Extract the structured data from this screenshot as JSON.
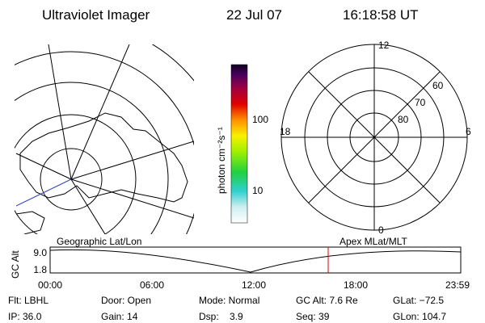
{
  "header": {
    "title": "Ultraviolet Imager",
    "date": "22 Jul 07",
    "time": "16:18:58 UT"
  },
  "colorbar": {
    "label": "photon cm⁻²s⁻¹",
    "ticks": [
      "100",
      "10"
    ]
  },
  "polar_plot": {
    "mlt_labels": [
      "12",
      "18",
      "6",
      "0"
    ],
    "lat_labels": [
      "60",
      "70",
      "80"
    ]
  },
  "timeline": {
    "left_title": "Geographic Lat/Lon",
    "right_title": "Apex MLat/MLT",
    "axis_label": "GC Alt",
    "alt_ticks": [
      "9.0",
      "1.8"
    ],
    "time_ticks": [
      "00:00",
      "06:00",
      "12:00",
      "18:00",
      "23:59"
    ]
  },
  "footer": {
    "rows": [
      [
        "Flt: LBHL",
        "Door: Open",
        "Mode: Normal",
        "GC Alt: 7.6 Re",
        "GLat: −72.5"
      ],
      [
        "IP: 36.0",
        "Gain: 14",
        "Dsp:    3.9",
        "Seq: 39",
        "GLon: 104.7"
      ]
    ]
  }
}
